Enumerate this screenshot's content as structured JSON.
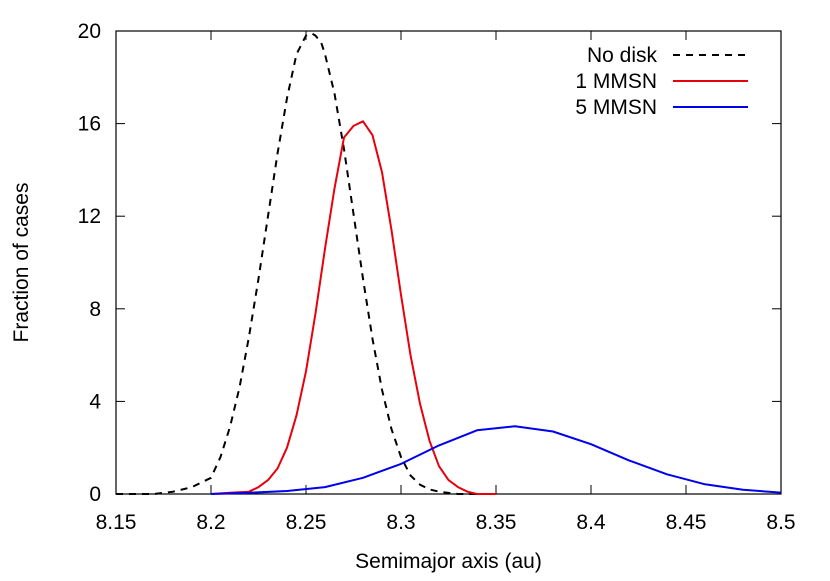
{
  "chart_data": {
    "type": "line",
    "xlabel": "Semimajor axis (au)",
    "ylabel": "Fraction of cases",
    "xlim": [
      8.15,
      8.5
    ],
    "ylim": [
      0,
      20
    ],
    "x_ticks": [
      "8.15",
      "8.2",
      "8.25",
      "8.3",
      "8.35",
      "8.4",
      "8.45",
      "8.5"
    ],
    "y_ticks": [
      "0",
      "4",
      "8",
      "12",
      "16",
      "20"
    ],
    "grid": false,
    "legend_position": "top-right",
    "series": [
      {
        "name": "No disk",
        "color": "#000000",
        "dash": "dashed",
        "x": [
          8.15,
          8.17,
          8.18,
          8.19,
          8.2,
          8.205,
          8.21,
          8.215,
          8.22,
          8.225,
          8.23,
          8.235,
          8.24,
          8.245,
          8.25,
          8.253,
          8.255,
          8.258,
          8.26,
          8.265,
          8.27,
          8.275,
          8.28,
          8.285,
          8.29,
          8.295,
          8.3,
          8.305,
          8.31,
          8.315,
          8.32,
          8.33,
          8.34
        ],
        "y": [
          0.0,
          0.0,
          0.1,
          0.3,
          0.7,
          1.6,
          2.9,
          4.6,
          6.8,
          9.3,
          12.0,
          14.7,
          17.1,
          19.0,
          19.8,
          19.9,
          19.8,
          19.5,
          19.0,
          17.3,
          14.9,
          12.1,
          9.3,
          6.7,
          4.5,
          2.8,
          1.6,
          0.8,
          0.4,
          0.2,
          0.1,
          0.0,
          0.0
        ]
      },
      {
        "name": "1 MMSN",
        "color": "#e8000b",
        "dash": "solid",
        "x": [
          8.2,
          8.21,
          8.22,
          8.225,
          8.23,
          8.235,
          8.24,
          8.245,
          8.25,
          8.255,
          8.26,
          8.265,
          8.27,
          8.275,
          8.28,
          8.285,
          8.29,
          8.295,
          8.3,
          8.305,
          8.31,
          8.315,
          8.32,
          8.325,
          8.33,
          8.335,
          8.34,
          8.35
        ],
        "y": [
          0.0,
          0.05,
          0.1,
          0.3,
          0.6,
          1.1,
          2.0,
          3.4,
          5.3,
          7.8,
          10.6,
          13.2,
          15.4,
          15.9,
          16.1,
          15.5,
          13.9,
          11.4,
          8.6,
          6.0,
          3.9,
          2.3,
          1.2,
          0.6,
          0.3,
          0.1,
          0.0,
          0.0
        ]
      },
      {
        "name": "5 MMSN",
        "color": "#0000ee",
        "dash": "solid",
        "x": [
          8.2,
          8.22,
          8.24,
          8.26,
          8.28,
          8.3,
          8.32,
          8.34,
          8.36,
          8.38,
          8.4,
          8.42,
          8.44,
          8.46,
          8.48,
          8.5
        ],
        "y": [
          0.0,
          0.05,
          0.13,
          0.3,
          0.7,
          1.3,
          2.1,
          2.75,
          2.93,
          2.7,
          2.15,
          1.45,
          0.85,
          0.42,
          0.18,
          0.06
        ]
      }
    ]
  }
}
